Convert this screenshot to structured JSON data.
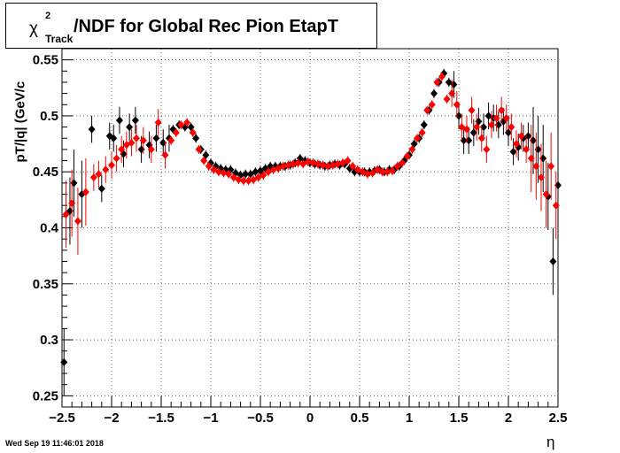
{
  "title": {
    "chi": "χ",
    "sup": "2",
    "sub": "Track",
    "main": "/NDF for Global Rec Pion EtapT"
  },
  "footer_timestamp": "Wed Sep 19 11:46:01 2018",
  "chart_data": {
    "type": "scatter",
    "title": "χ2Track/NDF for Global Rec Pion EtapT",
    "xlabel": "η",
    "ylabel": "pT/|q| (GeV/c",
    "xlim": [
      -2.5,
      2.5
    ],
    "ylim": [
      0.24,
      0.56
    ],
    "xticks": [
      -2.5,
      -2,
      -1.5,
      -1,
      -0.5,
      0,
      0.5,
      1,
      1.5,
      2,
      2.5
    ],
    "xtick_labels": [
      "−2.5",
      "−2",
      "−1.5",
      "−1",
      "−0.5",
      "0",
      "0.5",
      "1",
      "1.5",
      "2",
      "2.5"
    ],
    "yticks": [
      0.25,
      0.3,
      0.35,
      0.4,
      0.45,
      0.5,
      0.55
    ],
    "ytick_labels": [
      "0.25",
      "0.3",
      "0.35",
      "0.4",
      "0.45",
      "0.5",
      "0.55"
    ],
    "grid": true,
    "series": [
      {
        "color": "#000000",
        "x": [
          -2.48,
          -2.42,
          -2.38,
          -2.3,
          -2.2,
          -2.1,
          -2.02,
          -1.98,
          -1.92,
          -1.88,
          -1.82,
          -1.76,
          -1.7,
          -1.62,
          -1.55,
          -1.48,
          -1.42,
          -1.38,
          -1.32,
          -1.26,
          -1.2,
          -1.15,
          -1.1,
          -1.05,
          -1.0,
          -0.95,
          -0.9,
          -0.85,
          -0.8,
          -0.75,
          -0.7,
          -0.65,
          -0.6,
          -0.55,
          -0.5,
          -0.45,
          -0.4,
          -0.35,
          -0.3,
          -0.25,
          -0.2,
          -0.15,
          -0.1,
          -0.05,
          0.0,
          0.05,
          0.1,
          0.15,
          0.2,
          0.25,
          0.3,
          0.35,
          0.4,
          0.45,
          0.5,
          0.55,
          0.6,
          0.65,
          0.7,
          0.75,
          0.8,
          0.85,
          0.9,
          0.95,
          1.0,
          1.05,
          1.1,
          1.15,
          1.2,
          1.25,
          1.3,
          1.35,
          1.4,
          1.45,
          1.5,
          1.55,
          1.6,
          1.65,
          1.7,
          1.75,
          1.8,
          1.85,
          1.9,
          1.95,
          2.0,
          2.05,
          2.1,
          2.15,
          2.2,
          2.25,
          2.3,
          2.35,
          2.4,
          2.45,
          2.5
        ],
        "y": [
          0.28,
          0.415,
          0.44,
          0.43,
          0.488,
          0.435,
          0.482,
          0.48,
          0.496,
          0.466,
          0.49,
          0.496,
          0.47,
          0.474,
          0.48,
          0.476,
          0.48,
          0.488,
          0.492,
          0.49,
          0.49,
          0.48,
          0.47,
          0.465,
          0.458,
          0.455,
          0.453,
          0.452,
          0.452,
          0.449,
          0.447,
          0.448,
          0.448,
          0.45,
          0.451,
          0.453,
          0.455,
          0.455,
          0.455,
          0.455,
          0.456,
          0.458,
          0.462,
          0.46,
          0.458,
          0.457,
          0.456,
          0.455,
          0.456,
          0.457,
          0.456,
          0.457,
          0.453,
          0.45,
          0.45,
          0.45,
          0.45,
          0.451,
          0.452,
          0.45,
          0.452,
          0.452,
          0.455,
          0.46,
          0.465,
          0.475,
          0.48,
          0.492,
          0.505,
          0.52,
          0.53,
          0.538,
          0.53,
          0.528,
          0.5,
          0.478,
          0.478,
          0.485,
          0.495,
          0.49,
          0.5,
          0.498,
          0.492,
          0.495,
          0.485,
          0.468,
          0.472,
          0.48,
          0.482,
          0.478,
          0.47,
          0.462,
          0.428,
          0.37,
          0.438
        ]
      },
      {
        "color": "#ff0000",
        "x": [
          -2.46,
          -2.4,
          -2.34,
          -2.26,
          -2.18,
          -2.13,
          -2.06,
          -2.0,
          -1.95,
          -1.9,
          -1.85,
          -1.8,
          -1.75,
          -1.68,
          -1.6,
          -1.53,
          -1.46,
          -1.4,
          -1.35,
          -1.3,
          -1.24,
          -1.18,
          -1.12,
          -1.07,
          -1.02,
          -0.97,
          -0.92,
          -0.87,
          -0.82,
          -0.77,
          -0.72,
          -0.67,
          -0.62,
          -0.57,
          -0.52,
          -0.47,
          -0.42,
          -0.37,
          -0.32,
          -0.27,
          -0.22,
          -0.17,
          -0.12,
          -0.07,
          -0.02,
          0.03,
          0.08,
          0.13,
          0.18,
          0.23,
          0.28,
          0.33,
          0.38,
          0.43,
          0.48,
          0.53,
          0.58,
          0.63,
          0.68,
          0.73,
          0.78,
          0.83,
          0.88,
          0.93,
          0.98,
          1.03,
          1.08,
          1.13,
          1.18,
          1.23,
          1.28,
          1.33,
          1.38,
          1.43,
          1.48,
          1.53,
          1.58,
          1.63,
          1.68,
          1.73,
          1.78,
          1.83,
          1.88,
          1.93,
          1.98,
          2.03,
          2.08,
          2.13,
          2.18,
          2.23,
          2.28,
          2.33,
          2.38,
          2.43,
          2.48
        ],
        "y": [
          0.412,
          0.422,
          0.406,
          0.432,
          0.445,
          0.448,
          0.452,
          0.456,
          0.462,
          0.47,
          0.474,
          0.476,
          0.48,
          0.478,
          0.47,
          0.494,
          0.465,
          0.478,
          0.485,
          0.492,
          0.494,
          0.485,
          0.47,
          0.46,
          0.455,
          0.452,
          0.45,
          0.449,
          0.448,
          0.445,
          0.443,
          0.442,
          0.442,
          0.443,
          0.445,
          0.447,
          0.45,
          0.452,
          0.453,
          0.455,
          0.456,
          0.457,
          0.458,
          0.457,
          0.459,
          0.458,
          0.457,
          0.456,
          0.455,
          0.456,
          0.457,
          0.458,
          0.46,
          0.455,
          0.452,
          0.45,
          0.448,
          0.449,
          0.452,
          0.45,
          0.45,
          0.451,
          0.455,
          0.458,
          0.464,
          0.47,
          0.48,
          0.485,
          0.505,
          0.51,
          0.53,
          0.535,
          0.515,
          0.52,
          0.51,
          0.49,
          0.488,
          0.505,
          0.49,
          0.48,
          0.47,
          0.492,
          0.498,
          0.505,
          0.498,
          0.49,
          0.475,
          0.482,
          0.47,
          0.462,
          0.455,
          0.445,
          0.43,
          0.455,
          0.42
        ]
      }
    ]
  }
}
